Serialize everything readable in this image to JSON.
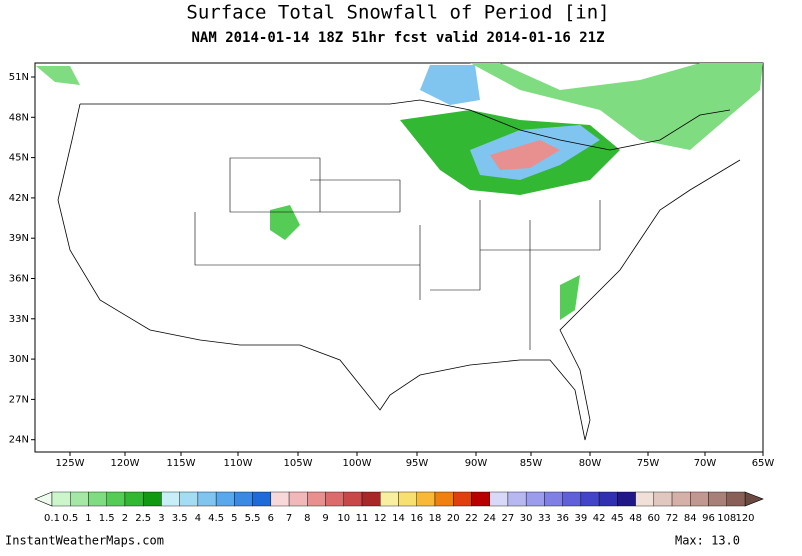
{
  "title": "Surface Total Snowfall of Period [in]",
  "subtitle": "NAM 2014-01-14 18Z 51hr fcst valid 2014-01-16 21Z",
  "lat_labels": [
    "51N",
    "48N",
    "45N",
    "42N",
    "39N",
    "36N",
    "33N",
    "30N",
    "27N",
    "24N"
  ],
  "lon_labels": [
    "125W",
    "120W",
    "115W",
    "110W",
    "105W",
    "100W",
    "95W",
    "90W",
    "85W",
    "80W",
    "75W",
    "70W",
    "65W"
  ],
  "colorbar": {
    "levels": [
      0.1,
      0.5,
      1,
      1.5,
      2,
      2.5,
      3,
      3.5,
      4,
      4.5,
      5,
      5.5,
      6,
      7,
      8,
      9,
      10,
      11,
      12,
      14,
      16,
      18,
      20,
      22,
      24,
      27,
      30,
      33,
      36,
      39,
      42,
      45,
      48,
      60,
      72,
      84,
      96,
      108,
      120
    ],
    "colors": [
      "#ccf5cc",
      "#a5e8a5",
      "#80dc80",
      "#55cc55",
      "#33b833",
      "#119911",
      "#c8eef8",
      "#a4dcf4",
      "#80c4f0",
      "#5aa8ec",
      "#3a8ae4",
      "#1e6ad8",
      "#f8d8d8",
      "#f0b8b8",
      "#e89090",
      "#dc6c6c",
      "#c84848",
      "#a82828",
      "#f8f0a0",
      "#f8e070",
      "#f8b838",
      "#f08010",
      "#e04010",
      "#b80000",
      "#d8d8f8",
      "#b8b8f0",
      "#9c9cec",
      "#8080e4",
      "#6060d8",
      "#4444c8",
      "#3030b0",
      "#201888",
      "#f0e0d8",
      "#e0c8c0",
      "#d4b0a8",
      "#c09890",
      "#a88078",
      "#886058"
    ]
  },
  "footer": {
    "site": "InstantWeatherMaps.com",
    "max": "Max:  13.0"
  }
}
